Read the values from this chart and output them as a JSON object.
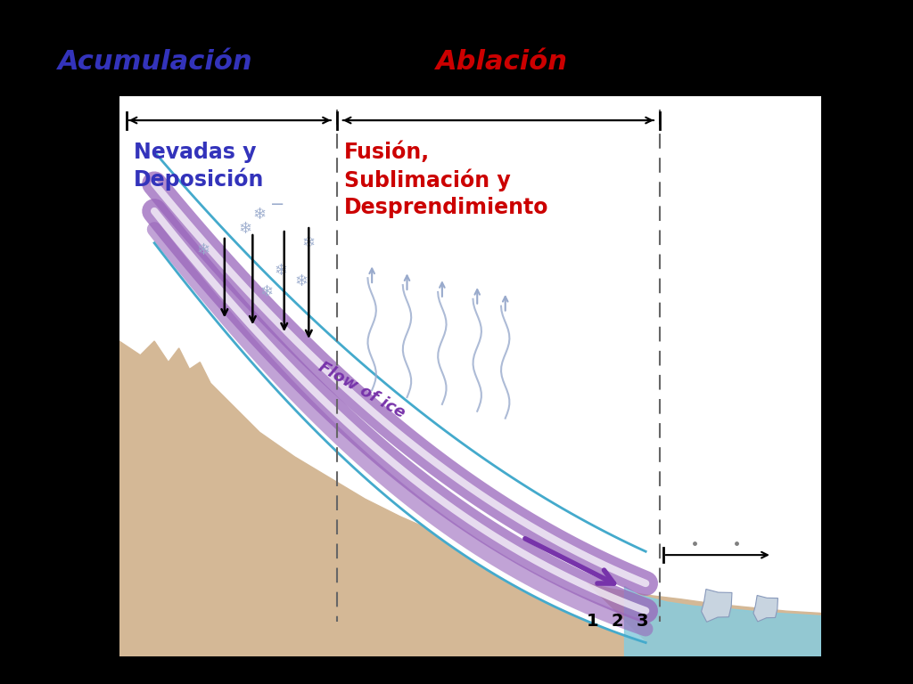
{
  "background_color": "#000000",
  "diagram_bg": "#ffffff",
  "title_acumulacion": "Acumulación",
  "title_ablacion": "Ablación",
  "title_acumulacion_color": "#3333bb",
  "title_ablacion_color": "#cc0000",
  "label_nevadas": "Nevadas y\nDeposición",
  "label_nevadas_color": "#3333bb",
  "label_fusion": "Fusión,\nSublimación y\nDesprendimiento",
  "label_fusion_color": "#cc0000",
  "label_flow": "Flow of ice",
  "label_flow_color": "#7733aa",
  "sand_color": "#d4b896",
  "glacier_blue_line": "#44aacc",
  "glacier_purple": "#9966bb",
  "glacier_purple2": "#7733aa",
  "water_color": "#88ccdd",
  "snow_color": "#99aacc",
  "dashed_line_color": "#666666",
  "arrow_color": "#333333",
  "title_fontsize": 22,
  "label_fontsize": 17
}
